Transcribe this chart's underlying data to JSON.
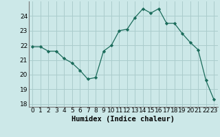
{
  "xlabel": "Humidex (Indice chaleur)",
  "ylabel": "",
  "x": [
    0,
    1,
    2,
    3,
    4,
    5,
    6,
    7,
    8,
    9,
    10,
    11,
    12,
    13,
    14,
    15,
    16,
    17,
    18,
    19,
    20,
    21,
    22,
    23
  ],
  "y": [
    21.9,
    21.9,
    21.6,
    21.6,
    21.1,
    20.8,
    20.3,
    19.7,
    19.8,
    21.6,
    22.0,
    23.0,
    23.1,
    23.9,
    24.5,
    24.2,
    24.5,
    23.5,
    23.5,
    22.8,
    22.2,
    21.7,
    19.6,
    18.3
  ],
  "line_color": "#1a6b5a",
  "marker": "D",
  "marker_size": 2.2,
  "bg_color": "#cce8e8",
  "grid_color": "#aacccc",
  "ylim": [
    17.8,
    25.0
  ],
  "yticks": [
    18,
    19,
    20,
    21,
    22,
    23,
    24
  ],
  "tick_fontsize": 6.5,
  "xlabel_fontsize": 7.5
}
